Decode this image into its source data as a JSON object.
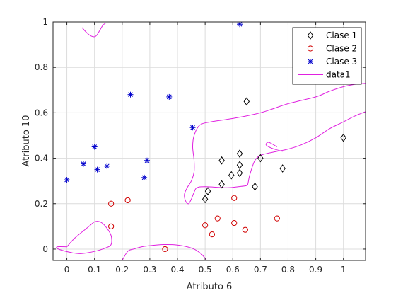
{
  "chart_data": {
    "type": "scatter",
    "title": "",
    "xlabel": "Atributo 6",
    "ylabel": "Atributo 10",
    "xlim": [
      -0.05,
      1.08
    ],
    "ylim": [
      -0.05,
      1.0
    ],
    "xticks": [
      0,
      0.1,
      0.2,
      0.3,
      0.4,
      0.5,
      0.6,
      0.7,
      0.8,
      0.9,
      1
    ],
    "xtick_labels": [
      "0",
      "0.1",
      "0.2",
      "0.3",
      "0.4",
      "0.5",
      "0.6",
      "0.7",
      "0.8",
      "0.9",
      "1"
    ],
    "yticks": [
      0,
      0.2,
      0.4,
      0.6,
      0.8,
      1
    ],
    "ytick_labels": [
      "0",
      "0.2",
      "0.4",
      "0.6",
      "0.8",
      "1"
    ],
    "grid": true,
    "legend_position": "top-right",
    "series": [
      {
        "name": "Clase 1",
        "marker": "diamond",
        "color": "#000000",
        "points": [
          [
            0.5,
            0.22
          ],
          [
            0.51,
            0.255
          ],
          [
            0.56,
            0.285
          ],
          [
            0.56,
            0.39
          ],
          [
            0.595,
            0.325
          ],
          [
            0.625,
            0.335
          ],
          [
            0.625,
            0.37
          ],
          [
            0.625,
            0.42
          ],
          [
            0.65,
            0.65
          ],
          [
            0.68,
            0.275
          ],
          [
            0.7,
            0.4
          ],
          [
            0.78,
            0.355
          ],
          [
            1.0,
            0.49
          ]
        ]
      },
      {
        "name": "Clase 2",
        "marker": "circle",
        "color": "#d00000",
        "points": [
          [
            0.16,
            0.2
          ],
          [
            0.16,
            0.1
          ],
          [
            0.22,
            0.215
          ],
          [
            0.355,
            0.0
          ],
          [
            0.5,
            0.105
          ],
          [
            0.525,
            0.065
          ],
          [
            0.545,
            0.135
          ],
          [
            0.605,
            0.225
          ],
          [
            0.605,
            0.115
          ],
          [
            0.645,
            0.085
          ],
          [
            0.76,
            0.135
          ]
        ]
      },
      {
        "name": "Clase 3",
        "marker": "asterisk",
        "color": "#0000cc",
        "points": [
          [
            0.0,
            0.305
          ],
          [
            0.06,
            0.375
          ],
          [
            0.1,
            0.45
          ],
          [
            0.11,
            0.35
          ],
          [
            0.145,
            0.365
          ],
          [
            0.23,
            0.68
          ],
          [
            0.28,
            0.315
          ],
          [
            0.29,
            0.39
          ],
          [
            0.37,
            0.67
          ],
          [
            0.455,
            0.535
          ],
          [
            0.625,
            0.99
          ]
        ]
      },
      {
        "name": "data1",
        "marker": "line",
        "color": "#e020e0",
        "contours": [
          [
            [
              0.055,
              0.975
            ],
            [
              0.07,
              0.955
            ],
            [
              0.085,
              0.94
            ],
            [
              0.1,
              0.935
            ],
            [
              0.11,
              0.945
            ],
            [
              0.12,
              0.965
            ],
            [
              0.13,
              0.985
            ],
            [
              0.14,
              0.995
            ]
          ],
          [
            [
              0.2,
              -0.05
            ],
            [
              0.22,
              -0.01
            ],
            [
              0.24,
              0.0
            ],
            [
              0.27,
              0.01
            ],
            [
              0.3,
              0.015
            ],
            [
              0.35,
              0.02
            ],
            [
              0.4,
              0.018
            ],
            [
              0.45,
              0.005
            ],
            [
              0.48,
              -0.015
            ],
            [
              0.5,
              -0.04
            ],
            [
              0.505,
              -0.05
            ]
          ],
          [
            [
              0.0,
              0.01
            ],
            [
              0.03,
              0.05
            ],
            [
              0.08,
              0.1
            ],
            [
              0.1,
              0.12
            ],
            [
              0.12,
              0.12
            ],
            [
              0.14,
              0.1
            ],
            [
              0.16,
              0.06
            ],
            [
              0.16,
              0.02
            ],
            [
              0.14,
              0.005
            ],
            [
              0.1,
              -0.01
            ],
            [
              0.05,
              -0.02
            ],
            [
              0.015,
              -0.015
            ],
            [
              -0.03,
              0.0
            ],
            [
              -0.035,
              0.01
            ],
            [
              0.0,
              0.01
            ]
          ],
          [
            [
              1.08,
              0.605
            ],
            [
              1.04,
              0.585
            ],
            [
              1.0,
              0.56
            ],
            [
              0.95,
              0.53
            ],
            [
              0.9,
              0.49
            ],
            [
              0.85,
              0.46
            ],
            [
              0.8,
              0.44
            ],
            [
              0.76,
              0.43
            ],
            [
              0.72,
              0.42
            ],
            [
              0.695,
              0.41
            ],
            [
              0.68,
              0.39
            ],
            [
              0.67,
              0.36
            ],
            [
              0.66,
              0.32
            ],
            [
              0.655,
              0.29
            ],
            [
              0.65,
              0.28
            ],
            [
              0.62,
              0.275
            ],
            [
              0.58,
              0.27
            ],
            [
              0.5,
              0.275
            ],
            [
              0.47,
              0.27
            ],
            [
              0.46,
              0.25
            ],
            [
              0.45,
              0.22
            ],
            [
              0.44,
              0.2
            ],
            [
              0.43,
              0.21
            ],
            [
              0.425,
              0.24
            ],
            [
              0.435,
              0.27
            ],
            [
              0.45,
              0.3
            ],
            [
              0.46,
              0.34
            ],
            [
              0.46,
              0.39
            ],
            [
              0.455,
              0.45
            ],
            [
              0.46,
              0.5
            ],
            [
              0.48,
              0.545
            ],
            [
              0.52,
              0.56
            ],
            [
              0.6,
              0.575
            ],
            [
              0.7,
              0.6
            ],
            [
              0.8,
              0.64
            ],
            [
              0.9,
              0.67
            ],
            [
              0.95,
              0.695
            ],
            [
              1.0,
              0.715
            ],
            [
              1.04,
              0.725
            ],
            [
              1.08,
              0.73
            ]
          ],
          [
            [
              0.78,
              0.43
            ],
            [
              0.75,
              0.44
            ],
            [
              0.73,
              0.45
            ],
            [
              0.72,
              0.46
            ],
            [
              0.73,
              0.47
            ],
            [
              0.76,
              0.45
            ]
          ]
        ]
      }
    ]
  }
}
